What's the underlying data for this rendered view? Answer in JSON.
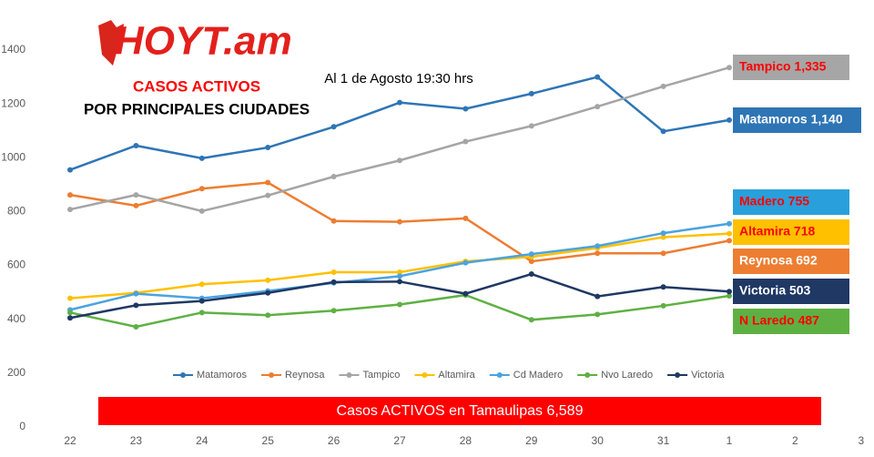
{
  "chart_data": {
    "type": "line",
    "logo": "HOYT.am",
    "title": "CASOS ACTIVOS",
    "subtitle": "POR PRINCIPALES CIUDADES",
    "date_note": "Al 1 de Agosto 19:30 hrs",
    "banner": "Casos ACTIVOS en Tamaulipas 6,589",
    "categories": [
      "22",
      "23",
      "24",
      "25",
      "26",
      "27",
      "28",
      "29",
      "30",
      "31",
      "1",
      "2",
      "3"
    ],
    "ylim": [
      0,
      1400
    ],
    "yticks": [
      0,
      200,
      400,
      600,
      800,
      1000,
      1200,
      1400
    ],
    "grid": false,
    "legend": "bottom",
    "series": [
      {
        "name": "Matamoros",
        "color": "#2e75b6",
        "values": [
          955,
          1045,
          998,
          1038,
          1115,
          1205,
          1182,
          1238,
          1300,
          1098,
          1140,
          null,
          null
        ]
      },
      {
        "name": "Reynosa",
        "color": "#ed7d31",
        "values": [
          862,
          822,
          885,
          908,
          765,
          762,
          775,
          615,
          645,
          645,
          692,
          null,
          null
        ]
      },
      {
        "name": "Tampico",
        "color": "#a5a5a5",
        "values": [
          808,
          862,
          802,
          860,
          930,
          990,
          1060,
          1118,
          1190,
          1265,
          1335,
          null,
          null
        ]
      },
      {
        "name": "Altamira",
        "color": "#ffc000",
        "values": [
          478,
          498,
          530,
          545,
          575,
          575,
          615,
          632,
          665,
          705,
          718,
          null,
          null
        ]
      },
      {
        "name": "Cd Madero",
        "color": "#4aa3df",
        "values": [
          435,
          495,
          478,
          505,
          535,
          560,
          610,
          642,
          672,
          720,
          755,
          null,
          null
        ]
      },
      {
        "name": "Nvo Laredo",
        "color": "#5fb043",
        "values": [
          425,
          372,
          425,
          415,
          432,
          455,
          490,
          398,
          418,
          450,
          487,
          null,
          null
        ]
      },
      {
        "name": "Victoria",
        "color": "#1f3864",
        "values": [
          405,
          452,
          468,
          498,
          538,
          540,
          495,
          568,
          485,
          520,
          503,
          null,
          null
        ]
      }
    ],
    "annotations": [
      {
        "text": "Tampico 1,335",
        "color": "#ff0000",
        "background": "#a6a6a6"
      },
      {
        "text": "Matamoros 1,140",
        "color": "#ffffff",
        "background": "#2e75b6"
      },
      {
        "text": "Madero 755",
        "color": "#ff0000",
        "background": "#29a0db"
      },
      {
        "text": "Altamira 718",
        "color": "#ff0000",
        "background": "#ffc000"
      },
      {
        "text": "Reynosa 692",
        "color": "#ffffff",
        "background": "#ed7d31"
      },
      {
        "text": "Victoria 503",
        "color": "#ffffff",
        "background": "#1f3864"
      },
      {
        "text": "N Laredo 487",
        "color": "#ff0000",
        "background": "#5fb043"
      }
    ]
  }
}
